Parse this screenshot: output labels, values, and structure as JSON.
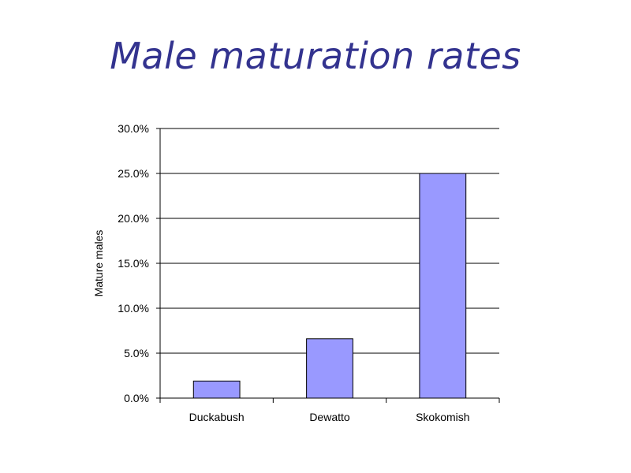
{
  "slide": {
    "title": "Male maturation rates"
  },
  "colors": {
    "title": "#33338f",
    "bar_fill": "#9999ff",
    "bar_stroke": "#000000",
    "gridline": "#000000"
  },
  "chart_data": {
    "type": "bar",
    "title": "",
    "xlabel": "",
    "ylabel": "Mature males",
    "categories": [
      "Duckabush",
      "Dewatto",
      "Skokomish"
    ],
    "values": [
      0.019,
      0.066,
      0.25
    ],
    "ylim": [
      0,
      0.3
    ],
    "y_ticks": [
      "0.0%",
      "5.0%",
      "10.0%",
      "15.0%",
      "20.0%",
      "25.0%",
      "30.0%"
    ],
    "y_tick_values": [
      0,
      0.05,
      0.1,
      0.15,
      0.2,
      0.25,
      0.3
    ],
    "grid": true,
    "legend": "none"
  }
}
